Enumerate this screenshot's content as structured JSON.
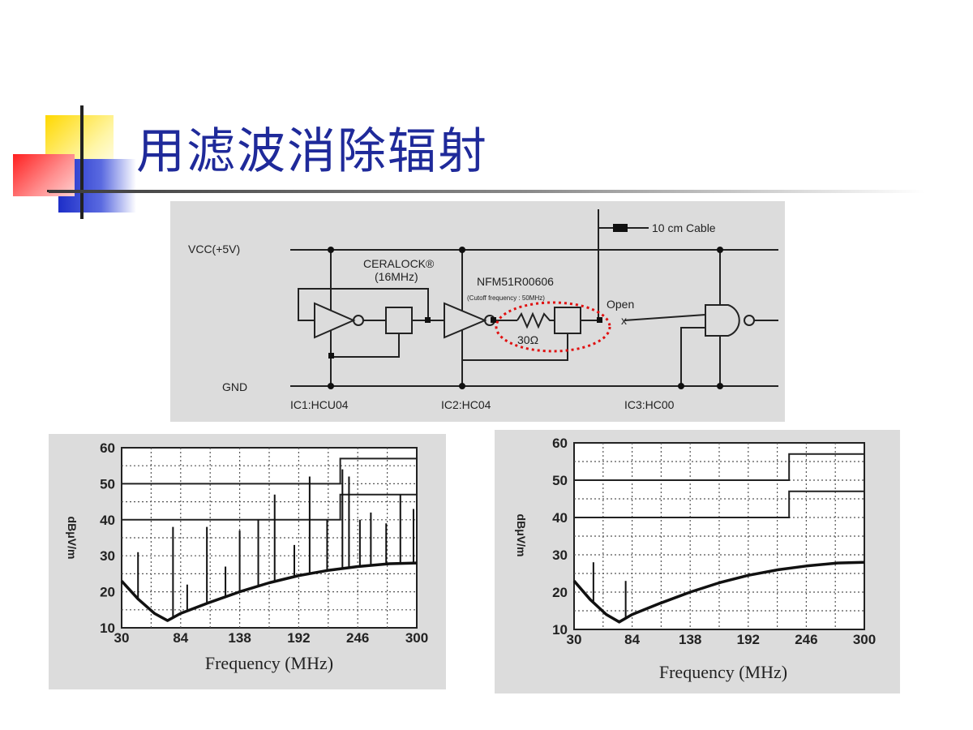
{
  "slide": {
    "title": "用滤波消除辐射"
  },
  "schematic": {
    "vcc": "VCC(+5V)",
    "gnd": "GND",
    "cable": "10 cm Cable",
    "ceralock_name": "CERALOCK®",
    "ceralock_freq": "(16MHz)",
    "filter_name": "NFM51R00606",
    "filter_note": "(Cutoff frequency : 50MHz)",
    "resistor": "30Ω",
    "open_label": "Open",
    "open_mark": "x",
    "ic1": "IC1:HCU04",
    "ic2": "IC2:HC04",
    "ic3": "IC3:HC00"
  },
  "chart_data": [
    {
      "type": "line",
      "title": "",
      "xlabel": "Frequency (MHz)",
      "ylabel": "dBμV/m",
      "xlim": [
        30,
        300
      ],
      "ylim": [
        10,
        60
      ],
      "x_ticks": [
        30,
        84,
        138,
        192,
        246,
        300
      ],
      "y_ticks": [
        10,
        20,
        30,
        40,
        50,
        60
      ],
      "grid": true,
      "limit_lines": [
        {
          "points": [
            [
              30,
              50
            ],
            [
              230,
              50
            ],
            [
              230,
              57
            ],
            [
              300,
              57
            ]
          ]
        },
        {
          "points": [
            [
              30,
              40
            ],
            [
              230,
              40
            ],
            [
              230,
              47
            ],
            [
              300,
              47
            ]
          ]
        }
      ],
      "noise_floor": [
        [
          30,
          23
        ],
        [
          45,
          18
        ],
        [
          60,
          14
        ],
        [
          72,
          12
        ],
        [
          84,
          14
        ],
        [
          110,
          17
        ],
        [
          138,
          20
        ],
        [
          165,
          22.5
        ],
        [
          192,
          24.5
        ],
        [
          220,
          26
        ],
        [
          246,
          27
        ],
        [
          275,
          27.8
        ],
        [
          300,
          28
        ]
      ],
      "spikes": [
        [
          45,
          31
        ],
        [
          77,
          38
        ],
        [
          90,
          22
        ],
        [
          108,
          38
        ],
        [
          125,
          27
        ],
        [
          138,
          37
        ],
        [
          155,
          40
        ],
        [
          170,
          47
        ],
        [
          188,
          33
        ],
        [
          202,
          52
        ],
        [
          218,
          40
        ],
        [
          232,
          54
        ],
        [
          238,
          52
        ],
        [
          248,
          40
        ],
        [
          258,
          42
        ],
        [
          272,
          39
        ],
        [
          285,
          47
        ],
        [
          297,
          43
        ]
      ]
    },
    {
      "type": "line",
      "title": "",
      "xlabel": "Frequency (MHz)",
      "ylabel": "dBμV/m",
      "xlim": [
        30,
        300
      ],
      "ylim": [
        10,
        60
      ],
      "x_ticks": [
        30,
        84,
        138,
        192,
        246,
        300
      ],
      "y_ticks": [
        10,
        20,
        30,
        40,
        50,
        60
      ],
      "grid": true,
      "limit_lines": [
        {
          "points": [
            [
              30,
              50
            ],
            [
              230,
              50
            ],
            [
              230,
              57
            ],
            [
              300,
              57
            ]
          ]
        },
        {
          "points": [
            [
              30,
              40
            ],
            [
              230,
              40
            ],
            [
              230,
              47
            ],
            [
              300,
              47
            ]
          ]
        }
      ],
      "noise_floor": [
        [
          30,
          23
        ],
        [
          45,
          18
        ],
        [
          60,
          14
        ],
        [
          72,
          12
        ],
        [
          84,
          14
        ],
        [
          110,
          17
        ],
        [
          138,
          20
        ],
        [
          165,
          22.5
        ],
        [
          192,
          24.5
        ],
        [
          220,
          26
        ],
        [
          246,
          27
        ],
        [
          275,
          27.8
        ],
        [
          300,
          28
        ]
      ],
      "spikes": [
        [
          48,
          28
        ],
        [
          78,
          23
        ]
      ]
    }
  ]
}
